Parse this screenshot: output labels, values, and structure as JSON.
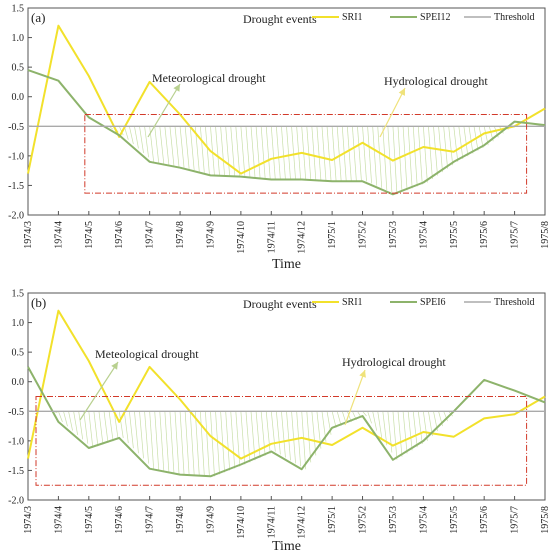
{
  "chart_data": [
    {
      "type": "line",
      "panel_label": "(a)",
      "title": "Drought events",
      "xlabel": "Time",
      "ylabel": "",
      "ylim": [
        -2.0,
        1.5
      ],
      "yticks": [
        "-2.0",
        "-1.5",
        "-1.0",
        "-0.5",
        "0.0",
        "0.5",
        "1.0",
        "1.5"
      ],
      "categories": [
        "1974/3",
        "1974/4",
        "1974/5",
        "1974/6",
        "1974/7",
        "1974/8",
        "1974/9",
        "1974/10",
        "1974/11",
        "1974/12",
        "1975/1",
        "1975/2",
        "1975/3",
        "1975/4",
        "1975/5",
        "1975/6",
        "1975/7",
        "1975/8"
      ],
      "threshold": -0.5,
      "series": [
        {
          "name": "SRI1",
          "color": "#f2e12b",
          "values": [
            -1.3,
            1.2,
            0.35,
            -0.68,
            0.25,
            -0.3,
            -0.92,
            -1.3,
            -1.05,
            -0.95,
            -1.07,
            -0.78,
            -1.08,
            -0.85,
            -0.93,
            -0.62,
            -0.5,
            -0.2
          ]
        },
        {
          "name": "SPEI12",
          "color": "#8db36b",
          "values": [
            0.45,
            0.27,
            -0.35,
            -0.65,
            -1.1,
            -1.2,
            -1.33,
            -1.35,
            -1.4,
            -1.4,
            -1.43,
            -1.43,
            -1.65,
            -1.45,
            -1.1,
            -0.82,
            -0.42,
            -0.48
          ]
        },
        {
          "name": "Threshold",
          "color": "#aaaaaa",
          "values": [
            -0.5,
            -0.5,
            -0.5,
            -0.5,
            -0.5,
            -0.5,
            -0.5,
            -0.5,
            -0.5,
            -0.5,
            -0.5,
            -0.5,
            -0.5,
            -0.5,
            -0.5,
            -0.5,
            -0.5,
            -0.5
          ]
        }
      ],
      "highlight_box": {
        "x_from": "1974/5",
        "x_to": "1975/7",
        "y_from": -1.63,
        "y_to": -0.3
      },
      "annotations": [
        {
          "text": "Meteorological drought",
          "x": "1974/8",
          "y": 0.25
        },
        {
          "text": "Hydrological drought",
          "x": "1975/3",
          "y": 0.25
        }
      ],
      "legend": {
        "position": "top-right",
        "entries": [
          "SRI1",
          "SPEI12",
          "Threshold"
        ]
      },
      "grid": false
    },
    {
      "type": "line",
      "panel_label": "(b)",
      "title": "Drought events",
      "xlabel": "Time",
      "ylabel": "",
      "ylim": [
        -2.0,
        1.5
      ],
      "yticks": [
        "-2.0",
        "-1.5",
        "-1.0",
        "-0.5",
        "0.0",
        "0.5",
        "1.0",
        "1.5"
      ],
      "categories": [
        "1974/3",
        "1974/4",
        "1974/5",
        "1974/6",
        "1974/7",
        "1974/8",
        "1974/9",
        "1974/10",
        "1974/11",
        "1974/12",
        "1975/1",
        "1975/2",
        "1975/3",
        "1975/4",
        "1975/5",
        "1975/6",
        "1975/7",
        "1975/8"
      ],
      "threshold": -0.5,
      "series": [
        {
          "name": "SRI1",
          "color": "#f2e12b",
          "values": [
            -1.3,
            1.2,
            0.35,
            -0.68,
            0.25,
            -0.3,
            -0.92,
            -1.3,
            -1.05,
            -0.95,
            -1.07,
            -0.78,
            -1.08,
            -0.85,
            -0.93,
            -0.62,
            -0.55,
            -0.25
          ]
        },
        {
          "name": "SPEI6",
          "color": "#8db36b",
          "values": [
            0.25,
            -0.68,
            -1.12,
            -0.95,
            -1.47,
            -1.57,
            -1.6,
            -1.4,
            -1.18,
            -1.48,
            -0.78,
            -0.58,
            -1.32,
            -1.0,
            -0.5,
            0.03,
            -0.15,
            -0.35
          ]
        },
        {
          "name": "Threshold",
          "color": "#aaaaaa",
          "values": [
            -0.5,
            -0.5,
            -0.5,
            -0.5,
            -0.5,
            -0.5,
            -0.5,
            -0.5,
            -0.5,
            -0.5,
            -0.5,
            -0.5,
            -0.5,
            -0.5,
            -0.5,
            -0.5,
            -0.5,
            -0.5
          ]
        }
      ],
      "highlight_box": {
        "x_from": "1974/3",
        "x_to": "1975/7",
        "y_from": -1.75,
        "y_to": -0.25
      },
      "annotations": [
        {
          "text": "Meteological drought",
          "x": "1974/7",
          "y": 0.4
        },
        {
          "text": "Hydrological drought",
          "x": "1975/3",
          "y": 0.2
        }
      ],
      "legend": {
        "position": "top-right",
        "entries": [
          "SRI1",
          "SPEI6",
          "Threshold"
        ]
      },
      "grid": false
    }
  ]
}
